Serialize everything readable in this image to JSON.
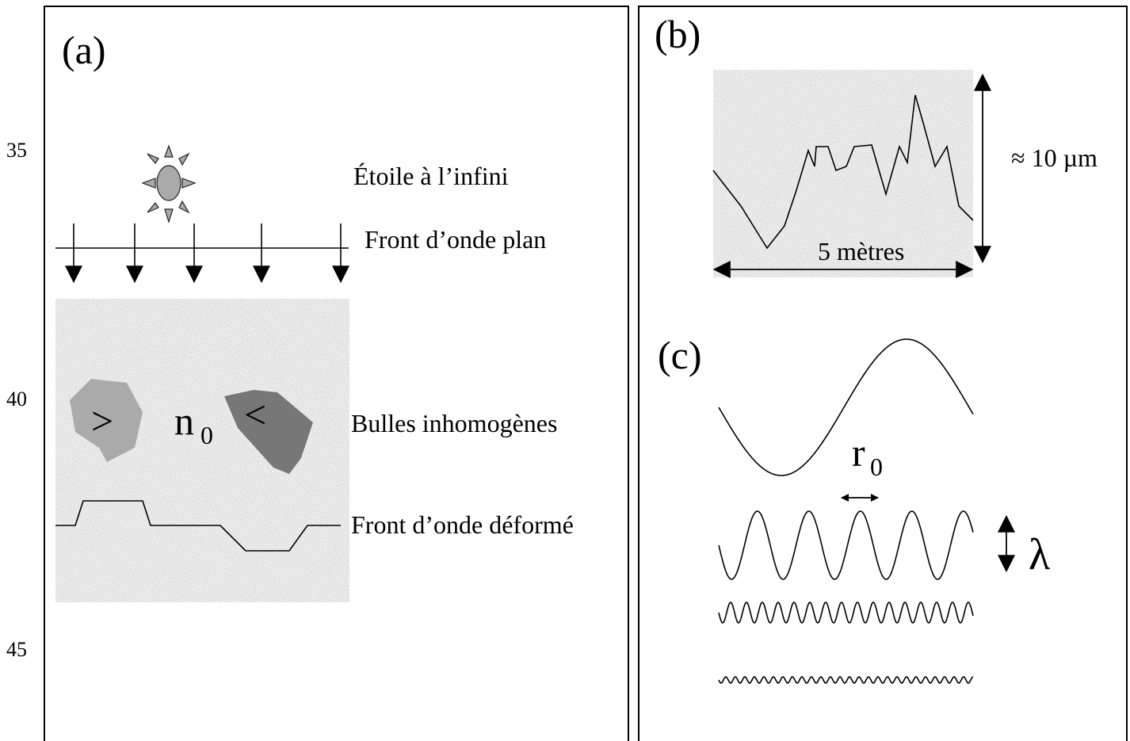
{
  "line_numbers": [
    "35",
    "40",
    "45"
  ],
  "panel_a": {
    "label": "(a)",
    "star_label": "Étoile à l’infini",
    "plane_wavefront": "Front d’onde plan",
    "index_symbol": "n",
    "index_subscript": "0",
    "bubble_left": ">",
    "bubble_right": "<",
    "bubbles_label": "Bulles inhomogènes",
    "deformed_wavefront": "Front d’onde déformé"
  },
  "panel_b": {
    "label": "(b)",
    "height_label": "≈ 10 µm",
    "width_label": "5 mètres"
  },
  "panel_c": {
    "label": "(c)",
    "r_symbol": "r",
    "r_subscript": "0",
    "lambda_symbol": "λ"
  }
}
